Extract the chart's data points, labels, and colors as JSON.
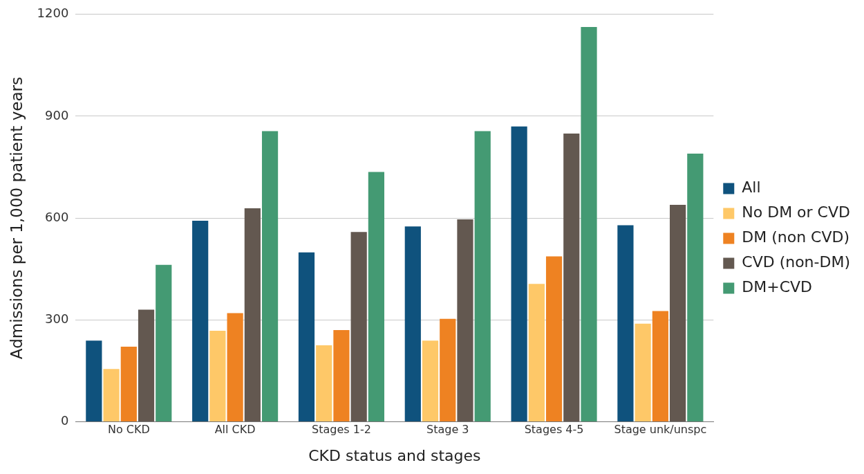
{
  "chart_data": {
    "type": "bar",
    "xlabel": "CKD status and stages",
    "ylabel": "Admissions per 1,000 patient years",
    "categories": [
      "No CKD",
      "All CKD",
      "Stages 1-2",
      "Stage 3",
      "Stages 4-5",
      "Stage unk/unspc"
    ],
    "series": [
      {
        "name": "All",
        "color": "#0f527d",
        "values": [
          239,
          592,
          499,
          575,
          870,
          579
        ]
      },
      {
        "name": "No DM or CVD",
        "color": "#fec868",
        "values": [
          155,
          268,
          225,
          239,
          406,
          289
        ]
      },
      {
        "name": "DM (non CVD)",
        "color": "#ee8222",
        "values": [
          221,
          320,
          270,
          303,
          487,
          326
        ]
      },
      {
        "name": "CVD (non-DM)",
        "color": "#635850",
        "values": [
          330,
          629,
          559,
          596,
          849,
          639
        ]
      },
      {
        "name": "DM+CVD",
        "color": "#449a73",
        "values": [
          462,
          856,
          736,
          856,
          1163,
          790
        ]
      }
    ],
    "ylim": [
      0,
      1200
    ],
    "yticks": [
      0,
      300,
      600,
      900,
      1200
    ],
    "grid": "y",
    "legend": "right"
  }
}
